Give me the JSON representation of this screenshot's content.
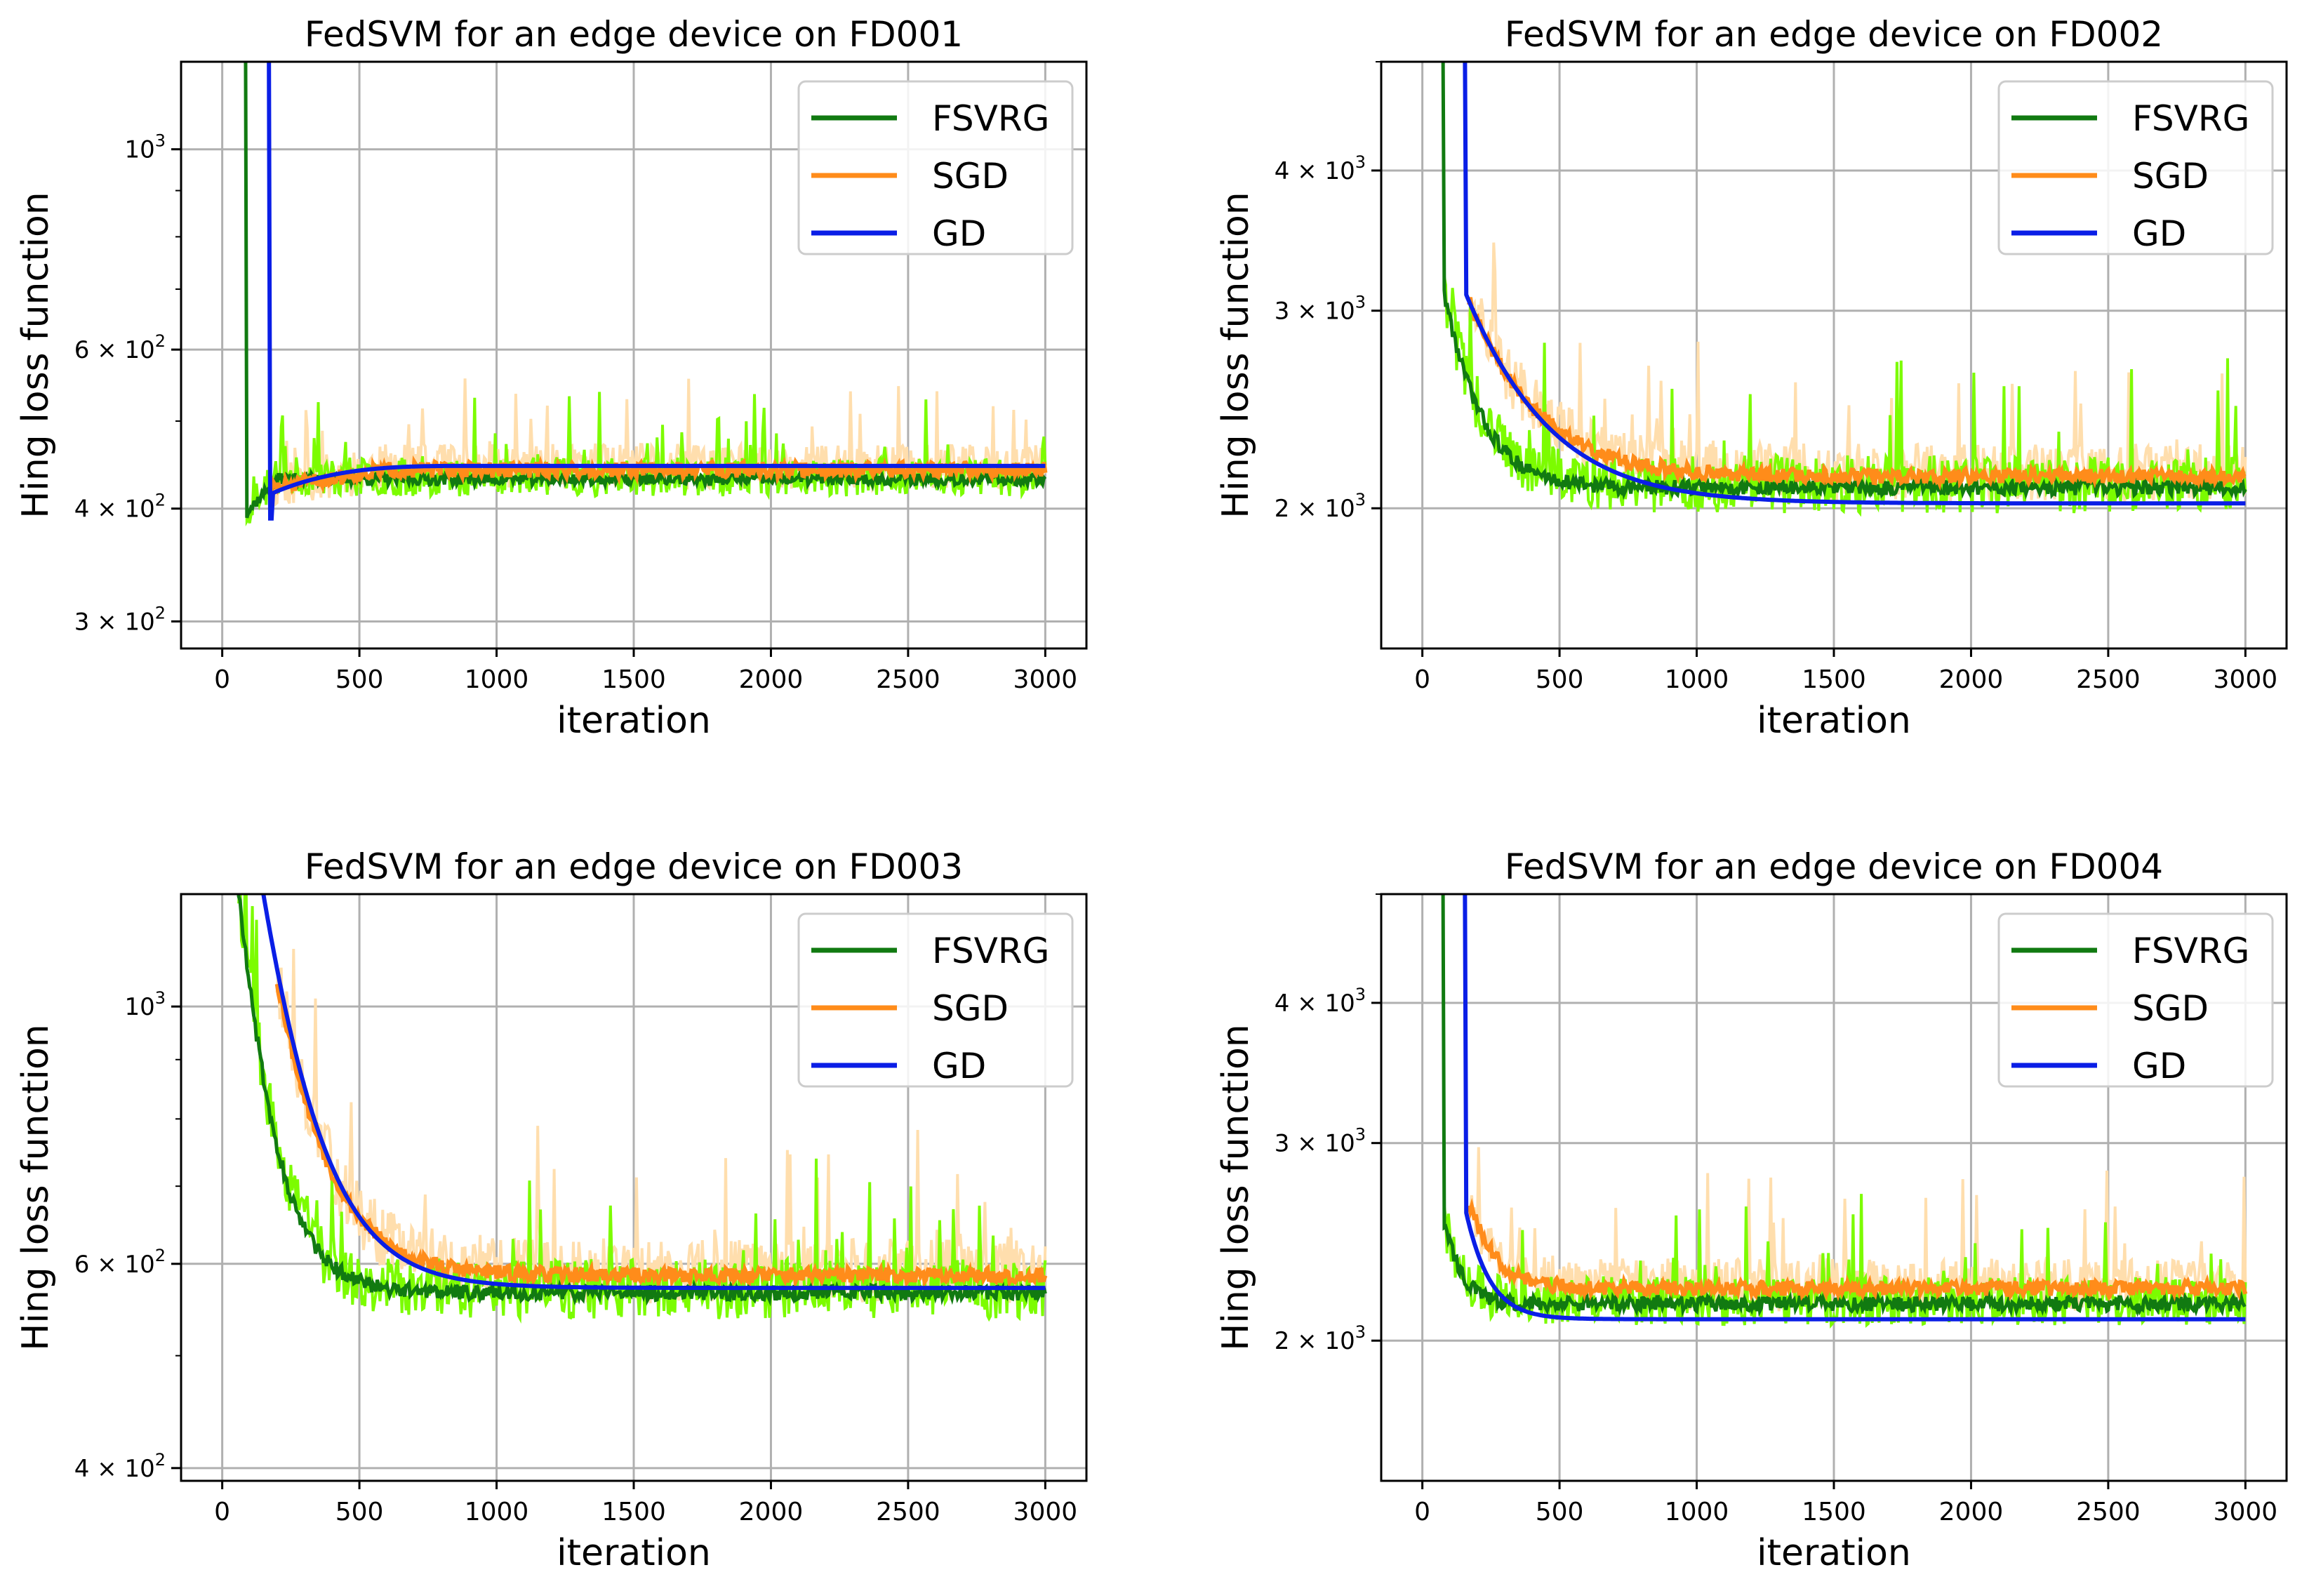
{
  "colors": {
    "FSVRG": "#117a11",
    "FSVRG_band": "#7cfc00",
    "SGD": "#ff8c1a",
    "SGD_band": "#ffdead",
    "GD": "#0a1ee6",
    "grid": "#b0b0b0"
  },
  "chart_data": [
    {
      "type": "line",
      "title": "FedSVM for an edge device on FD001",
      "xlabel": "iteration",
      "ylabel": "Hing loss function",
      "yscale": "log",
      "xlim": [
        -150,
        3150
      ],
      "ylim": [
        280,
        1250
      ],
      "xticks": [
        0,
        500,
        1000,
        1500,
        2000,
        2500,
        3000
      ],
      "xtick_labels": [
        "0",
        "500",
        "1000",
        "1500",
        "2000",
        "2500",
        "3000"
      ],
      "ytick_values": [
        300,
        400,
        600,
        1000
      ],
      "ytick_labels": [
        {
          "mant": "3 × 10",
          "exp": "2"
        },
        {
          "mant": "4 × 10",
          "exp": "2"
        },
        {
          "mant": "6 × 10",
          "exp": "2"
        },
        {
          "mant": "",
          "base": "10",
          "exp": "3"
        }
      ],
      "grid": true,
      "legend": {
        "position": "top-right",
        "entries": [
          "FSVRG",
          "SGD",
          "GD"
        ]
      },
      "series": [
        {
          "name": "FSVRG",
          "start_x": 70,
          "start_y": 1250,
          "drop_x": 90,
          "min_y": 395,
          "plateau": 430,
          "plateau_x": 200,
          "band_noise": 0.1,
          "spike_y": 620
        },
        {
          "name": "SGD",
          "start_x": 180,
          "start_y": 420,
          "plateau": 440,
          "plateau_x": 600,
          "noise": 0.04,
          "band_noise": 0.12
        },
        {
          "name": "GD",
          "start_x": 160,
          "start_y": 1250,
          "drop_x": 175,
          "min_y": 390,
          "plateau": 446,
          "plateau_x": 900,
          "initial_y": 415
        }
      ]
    },
    {
      "type": "line",
      "title": "FedSVM for an edge device on FD002",
      "xlabel": "iteration",
      "ylabel": "Hing loss function",
      "yscale": "log",
      "xlim": [
        -150,
        3150
      ],
      "ylim": [
        1500,
        5000
      ],
      "xticks": [
        0,
        500,
        1000,
        1500,
        2000,
        2500,
        3000
      ],
      "xtick_labels": [
        "0",
        "500",
        "1000",
        "1500",
        "2000",
        "2500",
        "3000"
      ],
      "ytick_values": [
        2000,
        3000,
        4000
      ],
      "ytick_labels": [
        {
          "mant": "2 × 10",
          "exp": "3"
        },
        {
          "mant": "3 × 10",
          "exp": "3"
        },
        {
          "mant": "4 × 10",
          "exp": "3"
        }
      ],
      "grid": true,
      "legend": {
        "position": "top-right",
        "entries": [
          "FSVRG",
          "SGD",
          "GD"
        ]
      },
      "series": [
        {
          "name": "FSVRG",
          "start_x": 60,
          "start_y": 5000,
          "knee_x": 80,
          "knee_y": 3100,
          "plateau": 2080,
          "tau": 120,
          "band_noise": 0.12,
          "spike_y": 3250
        },
        {
          "name": "SGD",
          "start_x": 170,
          "start_y": 3050,
          "plateau": 2130,
          "tau": 220,
          "noise": 0.03,
          "band_noise": 0.12
        },
        {
          "name": "GD",
          "start_x": 150,
          "start_y": 5000,
          "knee_x": 160,
          "knee_y": 3100,
          "plateau": 2020,
          "tau": 260
        }
      ]
    },
    {
      "type": "line",
      "title": "FedSVM for an edge device on FD003",
      "xlabel": "iteration",
      "ylabel": "Hing loss function",
      "yscale": "log",
      "xlim": [
        -150,
        3150
      ],
      "ylim": [
        390,
        1250
      ],
      "xticks": [
        0,
        500,
        1000,
        1500,
        2000,
        2500,
        3000
      ],
      "xtick_labels": [
        "0",
        "500",
        "1000",
        "1500",
        "2000",
        "2500",
        "3000"
      ],
      "ytick_values": [
        400,
        600,
        1000
      ],
      "ytick_labels": [
        {
          "mant": "4 × 10",
          "exp": "2"
        },
        {
          "mant": "6 × 10",
          "exp": "2"
        },
        {
          "mant": "",
          "base": "10",
          "exp": "3"
        }
      ],
      "grid": true,
      "legend": {
        "position": "top-right",
        "entries": [
          "FSVRG",
          "SGD",
          "GD"
        ]
      },
      "series": [
        {
          "name": "FSVRG",
          "start_x": 60,
          "start_y": 1250,
          "knee_x": 60,
          "knee_y": 1250,
          "plateau": 565,
          "tau": 110,
          "band_noise": 0.12,
          "spike_y": 950
        },
        {
          "name": "SGD",
          "start_x": 200,
          "start_y": 1050,
          "plateau": 585,
          "tau": 160,
          "noise": 0.03,
          "band_noise": 0.13
        },
        {
          "name": "GD",
          "start_x": 150,
          "start_y": 1250,
          "knee_x": 150,
          "knee_y": 1250,
          "plateau": 572,
          "tau": 170
        }
      ]
    },
    {
      "type": "line",
      "title": "FedSVM for an edge device on FD004",
      "xlabel": "iteration",
      "ylabel": "Hing loss function",
      "yscale": "log",
      "xlim": [
        -150,
        3150
      ],
      "ylim": [
        1500,
        5000
      ],
      "xticks": [
        0,
        500,
        1000,
        1500,
        2000,
        2500,
        3000
      ],
      "xtick_labels": [
        "0",
        "500",
        "1000",
        "1500",
        "2000",
        "2500",
        "3000"
      ],
      "ytick_values": [
        2000,
        3000,
        4000
      ],
      "ytick_labels": [
        {
          "mant": "2 × 10",
          "exp": "3"
        },
        {
          "mant": "3 × 10",
          "exp": "3"
        },
        {
          "mant": "4 × 10",
          "exp": "3"
        }
      ],
      "grid": true,
      "legend": {
        "position": "top-right",
        "entries": [
          "FSVRG",
          "SGD",
          "GD"
        ]
      },
      "series": [
        {
          "name": "FSVRG",
          "start_x": 60,
          "start_y": 5000,
          "knee_x": 80,
          "knee_y": 2550,
          "plateau": 2150,
          "tau": 60,
          "band_noise": 0.1,
          "spike_y": 2850
        },
        {
          "name": "SGD",
          "start_x": 170,
          "start_y": 2650,
          "plateau": 2220,
          "tau": 90,
          "noise": 0.03,
          "band_noise": 0.11
        },
        {
          "name": "GD",
          "start_x": 150,
          "start_y": 5000,
          "knee_x": 160,
          "knee_y": 2600,
          "plateau": 2090,
          "tau": 80
        }
      ]
    }
  ]
}
